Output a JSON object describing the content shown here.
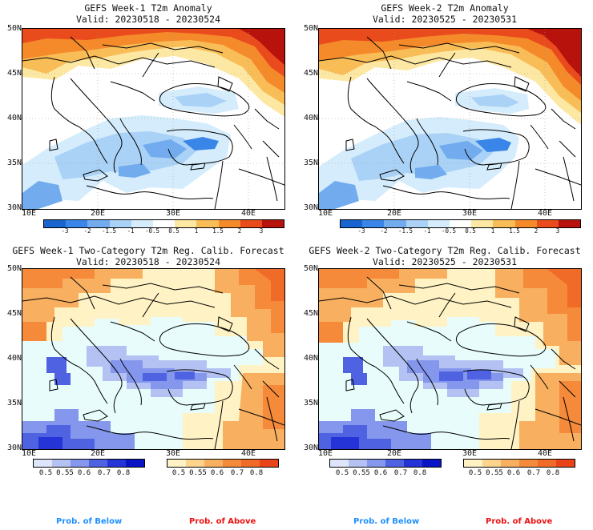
{
  "panels": [
    {
      "title": "GEFS Week-1 T2m Anomaly",
      "valid": "Valid: 20230518 - 20230524"
    },
    {
      "title": "GEFS Week-2 T2m Anomaly",
      "valid": "Valid: 20230525 - 20230531"
    },
    {
      "title": "GEFS Week-1 Two-Category T2m Reg. Calib. Forecast",
      "valid": "Valid: 20230518 - 20230524"
    },
    {
      "title": "GEFS Week-2 Two-Category T2m Reg. Calib. Forecast",
      "valid": "Valid: 20230525 - 20230531"
    }
  ],
  "axes": {
    "lat_labels": [
      "50N",
      "45N",
      "40N",
      "35N",
      "30N"
    ],
    "lon_labels": [
      "10E",
      "20E",
      "30E",
      "40E"
    ]
  },
  "anomaly_colorbar": {
    "ticks": [
      "-3",
      "-2",
      "-1.5",
      "-1",
      "-0.5",
      "0.5",
      "1",
      "1.5",
      "2",
      "3"
    ],
    "colors": [
      "#1a64d0",
      "#3a86e8",
      "#72acee",
      "#a9d2f6",
      "#d4ecfb",
      "#ffffff",
      "#fde8a3",
      "#f9bd57",
      "#f48a2a",
      "#e94b1c",
      "#b8120c"
    ]
  },
  "prob_below_colorbar": {
    "ticks": [
      "0.5",
      "0.55",
      "0.6",
      "0.7",
      "0.8"
    ],
    "colors": [
      "#dfe6fb",
      "#b4c2f3",
      "#8497ec",
      "#4f62e1",
      "#2434d6",
      "#0a14c4"
    ]
  },
  "prob_above_colorbar": {
    "ticks": [
      "0.5",
      "0.55",
      "0.6",
      "0.7",
      "0.8"
    ],
    "colors": [
      "#fff2c4",
      "#fcd48c",
      "#f8b060",
      "#f58a3a",
      "#f06a28",
      "#e94418"
    ]
  },
  "footer": {
    "below_label": "Prob. of Below",
    "above_label": "Prob. of Above",
    "below_color": "#1e90ff",
    "above_color": "#ee1111"
  }
}
